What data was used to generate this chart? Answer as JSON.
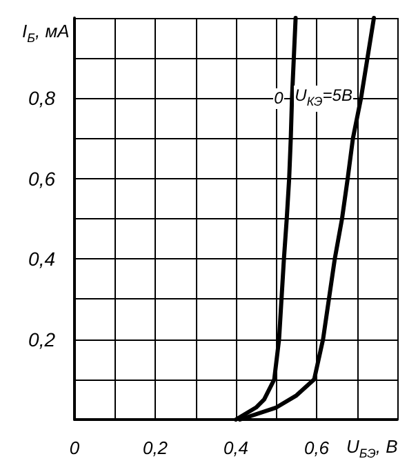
{
  "chart_data": {
    "type": "line",
    "xlabel": "U$_{БЭ}$, В",
    "ylabel": "I$_{Б}$, мА",
    "xlim": [
      0,
      0.8
    ],
    "ylim": [
      0,
      1
    ],
    "xticks": [
      {
        "value": 0,
        "label": "0"
      },
      {
        "value": 0.1,
        "label": null
      },
      {
        "value": 0.2,
        "label": "0,2"
      },
      {
        "value": 0.3,
        "label": null
      },
      {
        "value": 0.4,
        "label": "0,4"
      },
      {
        "value": 0.5,
        "label": null
      },
      {
        "value": 0.6,
        "label": "0,6"
      },
      {
        "value": 0.7,
        "label": null
      },
      {
        "value": 0.8,
        "label": null
      }
    ],
    "yticks": [
      {
        "value": 0,
        "label": null
      },
      {
        "value": 0.1,
        "label": null
      },
      {
        "value": 0.2,
        "label": "0,2"
      },
      {
        "value": 0.3,
        "label": null
      },
      {
        "value": 0.4,
        "label": "0,4"
      },
      {
        "value": 0.5,
        "label": null
      },
      {
        "value": 0.6,
        "label": "0,6"
      },
      {
        "value": 0.7,
        "label": null
      },
      {
        "value": 0.8,
        "label": "0,8"
      },
      {
        "value": 0.9,
        "label": null
      },
      {
        "value": 1,
        "label": null
      }
    ],
    "grid": true,
    "legend": false,
    "marker": "none",
    "line_style": "solid",
    "series": [
      {
        "name": "0",
        "color": "#000000",
        "x": [
          0.4,
          0.45,
          0.47,
          0.495,
          0.507,
          0.519,
          0.526,
          0.532,
          0.536,
          0.539,
          0.548
        ],
        "values": [
          0,
          0.03,
          0.05,
          0.1,
          0.2,
          0.4,
          0.5,
          0.6,
          0.7,
          0.8,
          1
        ]
      },
      {
        "name": "U$_{КЭ}$=5В",
        "color": "#000000",
        "x": [
          0.41,
          0.5,
          0.55,
          0.594,
          0.616,
          0.645,
          0.663,
          0.677,
          0.69,
          0.71,
          0.742
        ],
        "values": [
          0,
          0.03,
          0.06,
          0.1,
          0.2,
          0.4,
          0.5,
          0.6,
          0.7,
          0.8,
          1
        ]
      }
    ]
  }
}
